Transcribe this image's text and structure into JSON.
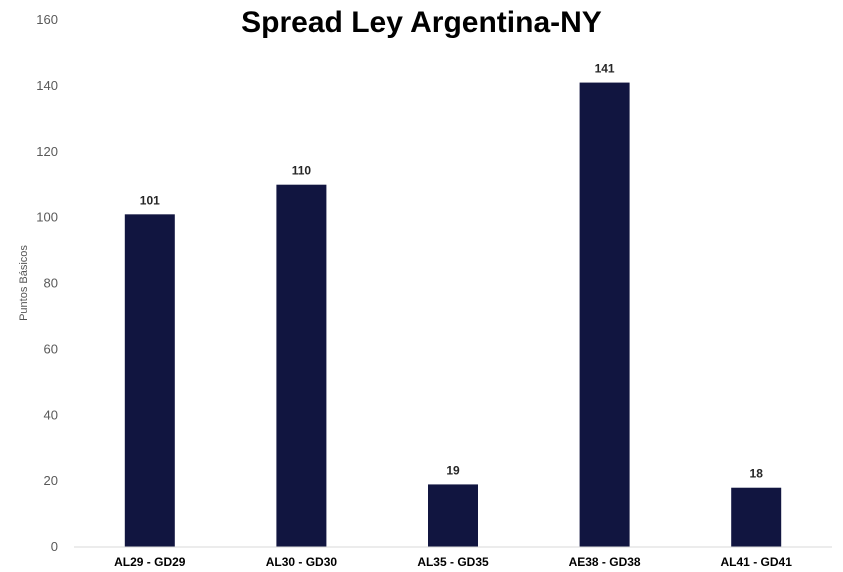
{
  "chart_data": {
    "type": "bar",
    "title": "Spread Ley Argentina-NY",
    "xlabel": "",
    "ylabel": "Puntos Básicos",
    "categories": [
      "AL29 - GD29",
      "AL30 - GD30",
      "AL35 - GD35",
      "AE38 - GD38",
      "AL41 - GD41"
    ],
    "values": [
      101,
      110,
      19,
      141,
      18
    ],
    "data_labels": [
      "101",
      "110",
      "19",
      "141",
      "18"
    ],
    "ylim": [
      0,
      160
    ],
    "yticks": [
      0,
      20,
      40,
      60,
      80,
      100,
      120,
      140,
      160
    ],
    "grid": false,
    "legend": "none",
    "bar_color": "#111540"
  }
}
